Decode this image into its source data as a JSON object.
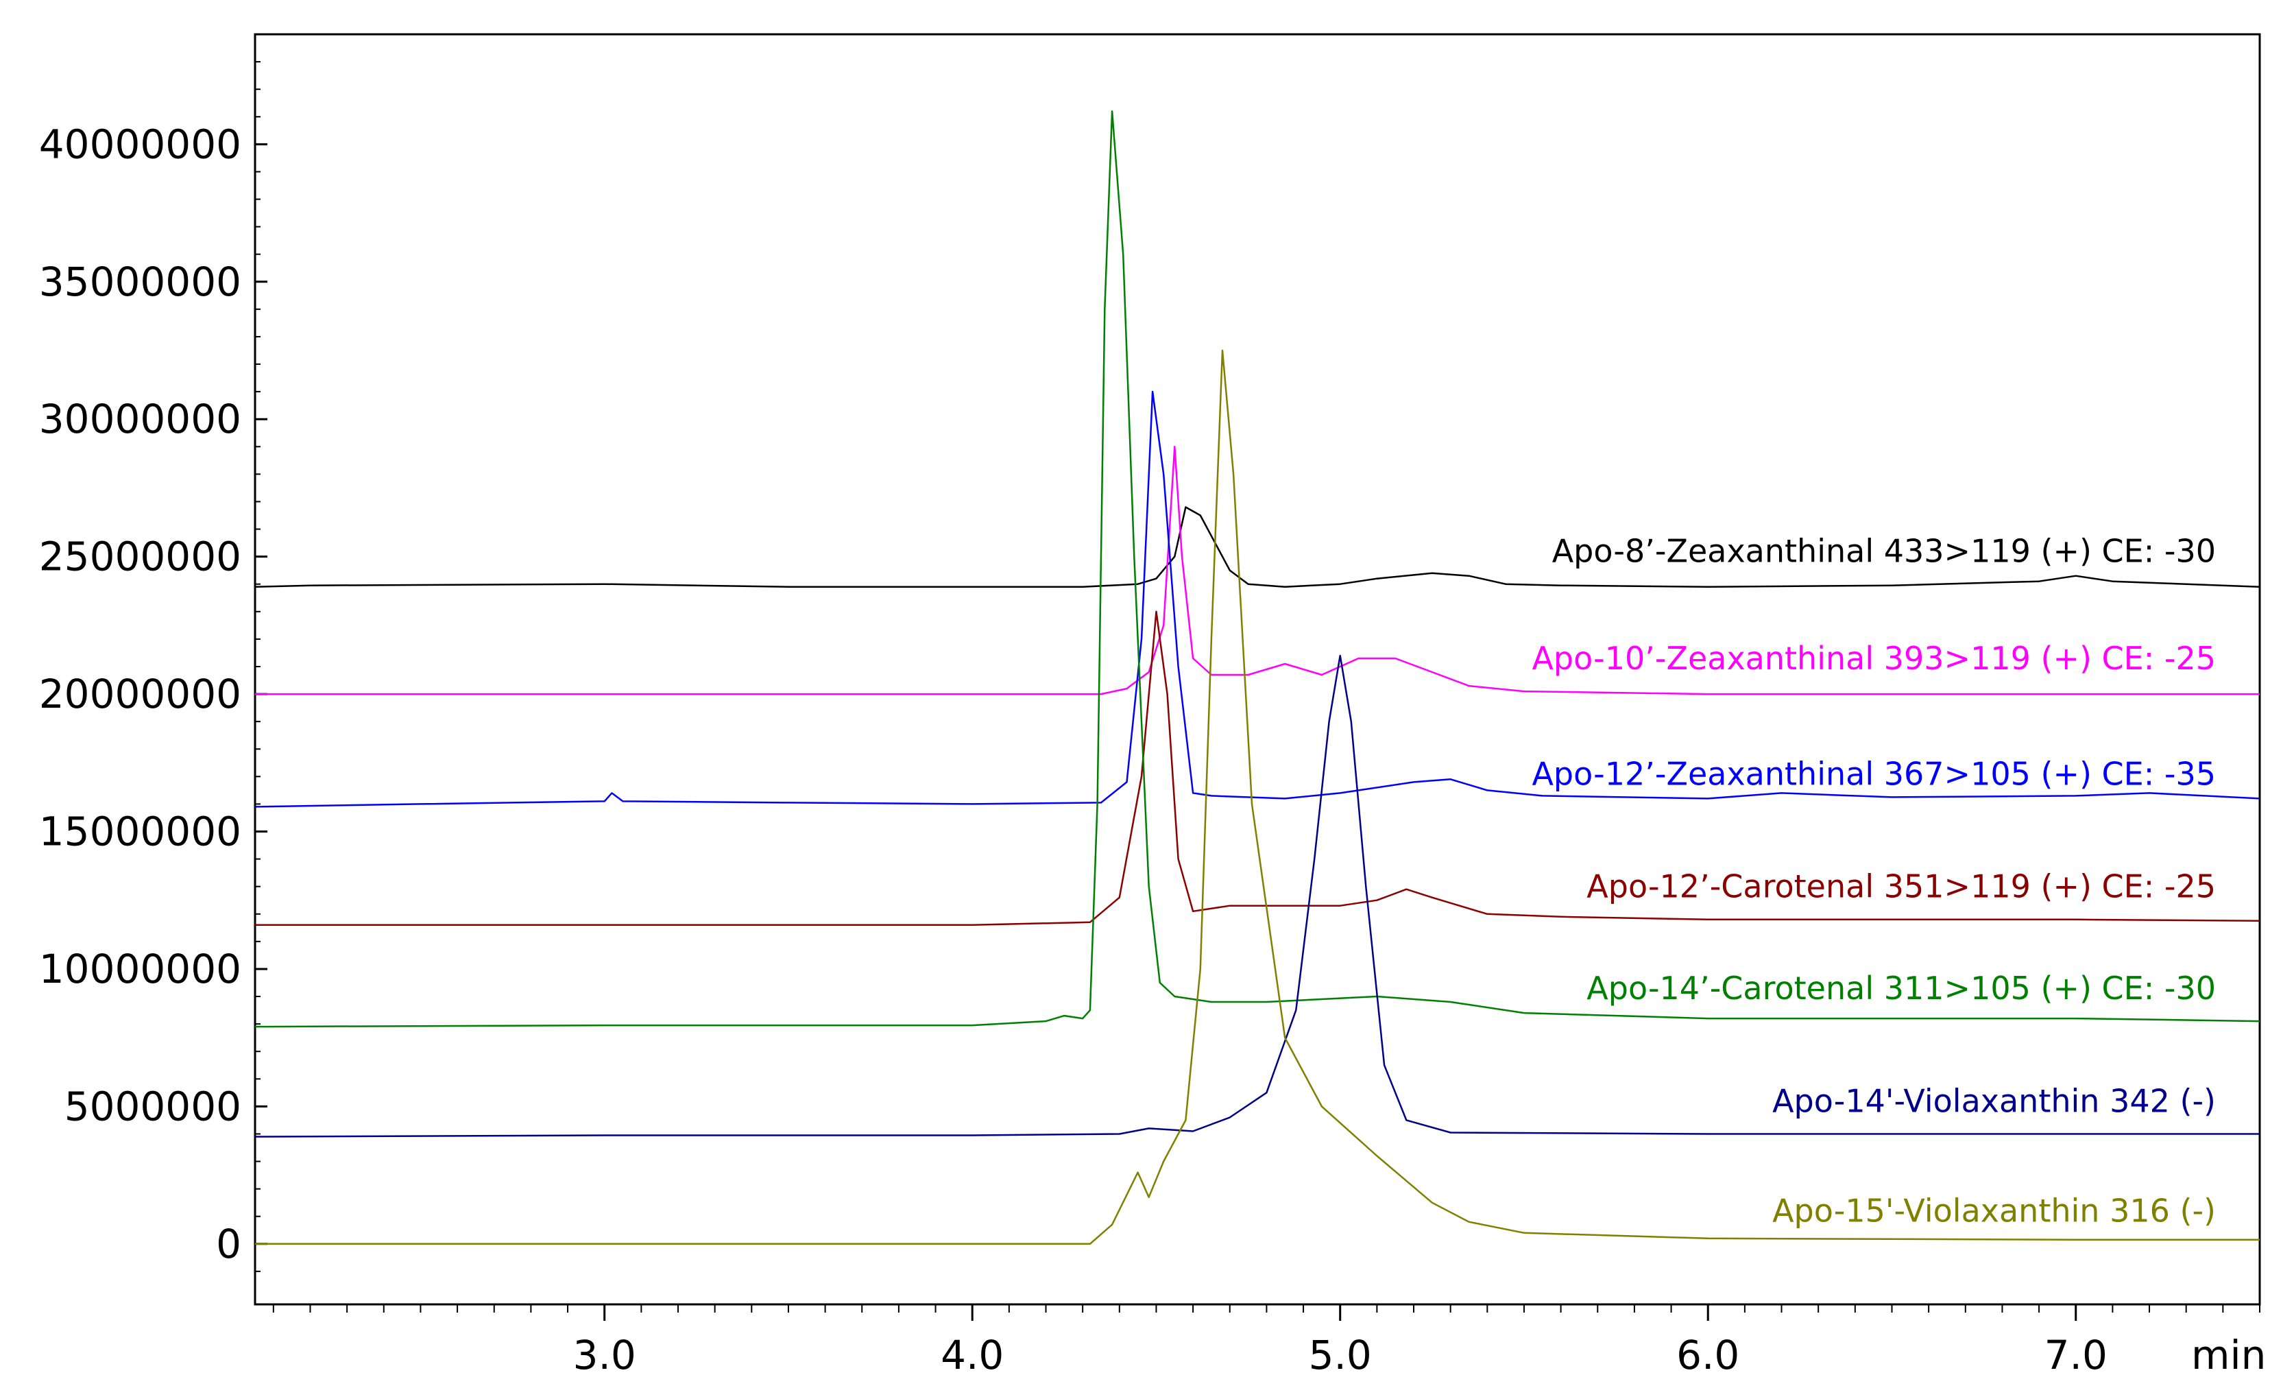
{
  "chart_data": {
    "type": "line",
    "title": "",
    "xlabel": "min",
    "ylabel": "",
    "xlim": [
      2.05,
      7.5
    ],
    "ylim": [
      -2200000,
      44000000
    ],
    "grid": false,
    "legend": "inline labels right of each trace",
    "x_ticks": [
      {
        "value": 3.0,
        "label": "3.0"
      },
      {
        "value": 4.0,
        "label": "4.0"
      },
      {
        "value": 5.0,
        "label": "5.0"
      },
      {
        "value": 6.0,
        "label": "6.0"
      },
      {
        "value": 7.0,
        "label": "7.0"
      }
    ],
    "y_ticks": [
      {
        "value": 0,
        "label": "0"
      },
      {
        "value": 5000000,
        "label": "5000000"
      },
      {
        "value": 10000000,
        "label": "10000000"
      },
      {
        "value": 15000000,
        "label": "15000000"
      },
      {
        "value": 20000000,
        "label": "20000000"
      },
      {
        "value": 25000000,
        "label": "25000000"
      },
      {
        "value": 30000000,
        "label": "30000000"
      },
      {
        "value": 35000000,
        "label": "35000000"
      },
      {
        "value": 40000000,
        "label": "40000000"
      }
    ],
    "series": [
      {
        "name": "Apo-8’-Zeaxanthinal 433>119 (+) CE: -30",
        "color": "#000000",
        "label_y": 25200000,
        "points": [
          [
            2.05,
            23900000
          ],
          [
            2.2,
            23950000
          ],
          [
            3.0,
            24000000
          ],
          [
            3.5,
            23900000
          ],
          [
            4.0,
            23900000
          ],
          [
            4.3,
            23900000
          ],
          [
            4.45,
            24000000
          ],
          [
            4.5,
            24200000
          ],
          [
            4.55,
            25000000
          ],
          [
            4.58,
            26800000
          ],
          [
            4.62,
            26500000
          ],
          [
            4.66,
            25500000
          ],
          [
            4.7,
            24500000
          ],
          [
            4.75,
            24000000
          ],
          [
            4.85,
            23900000
          ],
          [
            5.0,
            24000000
          ],
          [
            5.1,
            24200000
          ],
          [
            5.25,
            24400000
          ],
          [
            5.35,
            24300000
          ],
          [
            5.45,
            24000000
          ],
          [
            5.6,
            23950000
          ],
          [
            6.0,
            23900000
          ],
          [
            6.5,
            23950000
          ],
          [
            6.9,
            24100000
          ],
          [
            7.0,
            24300000
          ],
          [
            7.1,
            24100000
          ],
          [
            7.3,
            24000000
          ],
          [
            7.5,
            23900000
          ]
        ]
      },
      {
        "name": "Apo-10’-Zeaxanthinal 393>119 (+) CE: -25",
        "color": "#ff00ff",
        "label_y": 21300000,
        "points": [
          [
            2.05,
            20000000
          ],
          [
            3.0,
            20000000
          ],
          [
            4.0,
            20000000
          ],
          [
            4.35,
            20000000
          ],
          [
            4.42,
            20200000
          ],
          [
            4.48,
            20800000
          ],
          [
            4.52,
            22500000
          ],
          [
            4.55,
            29000000
          ],
          [
            4.57,
            25000000
          ],
          [
            4.6,
            21300000
          ],
          [
            4.65,
            20700000
          ],
          [
            4.75,
            20700000
          ],
          [
            4.85,
            21100000
          ],
          [
            4.95,
            20700000
          ],
          [
            5.05,
            21300000
          ],
          [
            5.15,
            21300000
          ],
          [
            5.25,
            20800000
          ],
          [
            5.35,
            20300000
          ],
          [
            5.5,
            20100000
          ],
          [
            6.0,
            20000000
          ],
          [
            7.0,
            20000000
          ],
          [
            7.5,
            20000000
          ]
        ]
      },
      {
        "name": "Apo-12’-Zeaxanthinal 367>105 (+) CE: -35",
        "color": "#0000ff",
        "label_y": 17100000,
        "points": [
          [
            2.05,
            15900000
          ],
          [
            2.5,
            16000000
          ],
          [
            3.0,
            16100000
          ],
          [
            3.02,
            16400000
          ],
          [
            3.05,
            16100000
          ],
          [
            3.5,
            16050000
          ],
          [
            4.0,
            16000000
          ],
          [
            4.35,
            16050000
          ],
          [
            4.42,
            16800000
          ],
          [
            4.46,
            22000000
          ],
          [
            4.49,
            31000000
          ],
          [
            4.52,
            28000000
          ],
          [
            4.56,
            21000000
          ],
          [
            4.6,
            16400000
          ],
          [
            4.65,
            16300000
          ],
          [
            4.85,
            16200000
          ],
          [
            5.0,
            16400000
          ],
          [
            5.2,
            16800000
          ],
          [
            5.3,
            16900000
          ],
          [
            5.4,
            16500000
          ],
          [
            5.55,
            16300000
          ],
          [
            6.0,
            16200000
          ],
          [
            6.2,
            16400000
          ],
          [
            6.5,
            16250000
          ],
          [
            7.0,
            16300000
          ],
          [
            7.2,
            16400000
          ],
          [
            7.5,
            16200000
          ]
        ]
      },
      {
        "name": "Apo-12’-Carotenal 351>119 (+) CE: -25",
        "color": "#8b0000",
        "label_y": 13000000,
        "points": [
          [
            2.05,
            11600000
          ],
          [
            3.0,
            11600000
          ],
          [
            4.0,
            11600000
          ],
          [
            4.32,
            11700000
          ],
          [
            4.4,
            12600000
          ],
          [
            4.46,
            17000000
          ],
          [
            4.5,
            23000000
          ],
          [
            4.53,
            20000000
          ],
          [
            4.56,
            14000000
          ],
          [
            4.6,
            12100000
          ],
          [
            4.7,
            12300000
          ],
          [
            5.0,
            12300000
          ],
          [
            5.1,
            12500000
          ],
          [
            5.18,
            12900000
          ],
          [
            5.25,
            12600000
          ],
          [
            5.4,
            12000000
          ],
          [
            5.6,
            11900000
          ],
          [
            6.0,
            11800000
          ],
          [
            7.0,
            11800000
          ],
          [
            7.5,
            11750000
          ]
        ]
      },
      {
        "name": "Apo-14’-Carotenal 311>105 (+) CE: -30",
        "color": "#008000",
        "label_y": 9300000,
        "points": [
          [
            2.05,
            7900000
          ],
          [
            3.0,
            7950000
          ],
          [
            4.0,
            7950000
          ],
          [
            4.2,
            8100000
          ],
          [
            4.25,
            8300000
          ],
          [
            4.3,
            8200000
          ],
          [
            4.32,
            8500000
          ],
          [
            4.34,
            16000000
          ],
          [
            4.36,
            34000000
          ],
          [
            4.38,
            41200000
          ],
          [
            4.41,
            36000000
          ],
          [
            4.44,
            25000000
          ],
          [
            4.48,
            13000000
          ],
          [
            4.51,
            9500000
          ],
          [
            4.55,
            9000000
          ],
          [
            4.65,
            8800000
          ],
          [
            4.8,
            8800000
          ],
          [
            5.1,
            9000000
          ],
          [
            5.3,
            8800000
          ],
          [
            5.5,
            8400000
          ],
          [
            6.0,
            8200000
          ],
          [
            7.0,
            8200000
          ],
          [
            7.5,
            8100000
          ]
        ]
      },
      {
        "name": "Apo-14'-Violaxanthin 342 (-)",
        "color": "#00008b",
        "label_y": 5200000,
        "points": [
          [
            2.05,
            3900000
          ],
          [
            3.0,
            3950000
          ],
          [
            4.0,
            3950000
          ],
          [
            4.4,
            4000000
          ],
          [
            4.48,
            4200000
          ],
          [
            4.6,
            4100000
          ],
          [
            4.7,
            4600000
          ],
          [
            4.8,
            5500000
          ],
          [
            4.88,
            8500000
          ],
          [
            4.93,
            14000000
          ],
          [
            4.97,
            19000000
          ],
          [
            5.0,
            21400000
          ],
          [
            5.03,
            19000000
          ],
          [
            5.07,
            13000000
          ],
          [
            5.12,
            6500000
          ],
          [
            5.18,
            4500000
          ],
          [
            5.3,
            4050000
          ],
          [
            6.0,
            4000000
          ],
          [
            7.0,
            4000000
          ],
          [
            7.5,
            4000000
          ]
        ]
      },
      {
        "name": "Apo-15'-Violaxanthin 316 (-)",
        "color": "#808000",
        "label_y": 1200000,
        "points": [
          [
            2.05,
            0
          ],
          [
            3.0,
            0
          ],
          [
            4.0,
            0
          ],
          [
            4.32,
            0
          ],
          [
            4.38,
            700000
          ],
          [
            4.45,
            2600000
          ],
          [
            4.48,
            1700000
          ],
          [
            4.52,
            3000000
          ],
          [
            4.58,
            4500000
          ],
          [
            4.62,
            10000000
          ],
          [
            4.65,
            22000000
          ],
          [
            4.68,
            32500000
          ],
          [
            4.71,
            28000000
          ],
          [
            4.76,
            16000000
          ],
          [
            4.85,
            7500000
          ],
          [
            4.95,
            5000000
          ],
          [
            5.1,
            3200000
          ],
          [
            5.25,
            1500000
          ],
          [
            5.35,
            800000
          ],
          [
            5.5,
            400000
          ],
          [
            6.0,
            200000
          ],
          [
            7.0,
            150000
          ],
          [
            7.5,
            150000
          ]
        ]
      }
    ]
  }
}
